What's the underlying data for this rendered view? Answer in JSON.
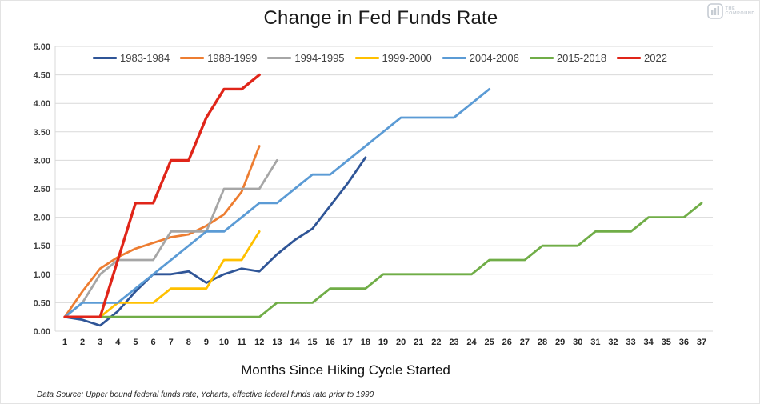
{
  "title": "Change in Fed Funds Rate",
  "x_axis_title": "Months Since Hiking Cycle Started",
  "footnote": "Data Source: Upper bound federal funds rate, Ycharts, effective federal funds rate prior to 1990",
  "logo": {
    "line1": "THE",
    "line2": "COMPOUND"
  },
  "colors": {
    "gridline": "#d9d9d9",
    "axis_text": "#404040",
    "tick_text": "#262626"
  },
  "chart_data": {
    "type": "line",
    "title": "Change in Fed Funds Rate",
    "xlabel": "Months Since Hiking Cycle Started",
    "ylabel": "",
    "xlim": [
      1,
      37
    ],
    "ylim": [
      0,
      5
    ],
    "grid": true,
    "legend_position": "top",
    "yticks": [
      "5.00",
      "4.50",
      "4.00",
      "3.50",
      "3.00",
      "2.50",
      "2.00",
      "1.50",
      "1.00",
      "0.50",
      "0.00"
    ],
    "xticks": [
      1,
      2,
      3,
      4,
      5,
      6,
      7,
      8,
      9,
      10,
      11,
      12,
      13,
      14,
      15,
      16,
      17,
      18,
      19,
      20,
      21,
      22,
      23,
      24,
      25,
      26,
      27,
      28,
      29,
      30,
      31,
      32,
      33,
      34,
      35,
      36,
      37
    ],
    "x_start": 1,
    "series": [
      {
        "name": "1983-1984",
        "color": "#2F5597",
        "width": 2.8,
        "values": [
          0.25,
          0.2,
          0.1,
          0.35,
          0.7,
          1.0,
          1.0,
          1.05,
          0.85,
          1.0,
          1.1,
          1.05,
          1.35,
          1.6,
          1.8,
          2.2,
          2.6,
          3.05
        ]
      },
      {
        "name": "1988-1999",
        "color": "#ED7D31",
        "width": 2.8,
        "values": [
          0.25,
          0.7,
          1.1,
          1.3,
          1.45,
          1.55,
          1.65,
          1.7,
          1.85,
          2.05,
          2.45,
          3.25
        ]
      },
      {
        "name": "1994-1995",
        "color": "#A6A6A6",
        "width": 2.8,
        "values": [
          0.25,
          0.5,
          1.0,
          1.25,
          1.25,
          1.25,
          1.75,
          1.75,
          1.75,
          2.5,
          2.5,
          2.5,
          3.0
        ]
      },
      {
        "name": "1999-2000",
        "color": "#FFC000",
        "width": 2.8,
        "values": [
          0.25,
          0.25,
          0.25,
          0.5,
          0.5,
          0.5,
          0.75,
          0.75,
          0.75,
          1.25,
          1.25,
          1.75
        ]
      },
      {
        "name": "2004-2006",
        "color": "#5B9BD5",
        "width": 2.8,
        "values": [
          0.25,
          0.5,
          0.5,
          0.5,
          0.75,
          1.0,
          1.25,
          1.5,
          1.75,
          1.75,
          2.0,
          2.25,
          2.25,
          2.5,
          2.75,
          2.75,
          3.0,
          3.25,
          3.5,
          3.75,
          3.75,
          3.75,
          3.75,
          4.0,
          4.25
        ]
      },
      {
        "name": "2015-2018",
        "color": "#70AD47",
        "width": 2.8,
        "values": [
          0.25,
          0.25,
          0.25,
          0.25,
          0.25,
          0.25,
          0.25,
          0.25,
          0.25,
          0.25,
          0.25,
          0.25,
          0.5,
          0.5,
          0.5,
          0.75,
          0.75,
          0.75,
          1.0,
          1.0,
          1.0,
          1.0,
          1.0,
          1.0,
          1.25,
          1.25,
          1.25,
          1.5,
          1.5,
          1.5,
          1.75,
          1.75,
          1.75,
          2.0,
          2.0,
          2.0,
          2.25
        ]
      },
      {
        "name": "2022",
        "color": "#E02519",
        "width": 3.4,
        "values": [
          0.25,
          0.25,
          0.25,
          1.25,
          2.25,
          2.25,
          3.0,
          3.0,
          3.75,
          4.25,
          4.25,
          4.5
        ]
      }
    ]
  }
}
